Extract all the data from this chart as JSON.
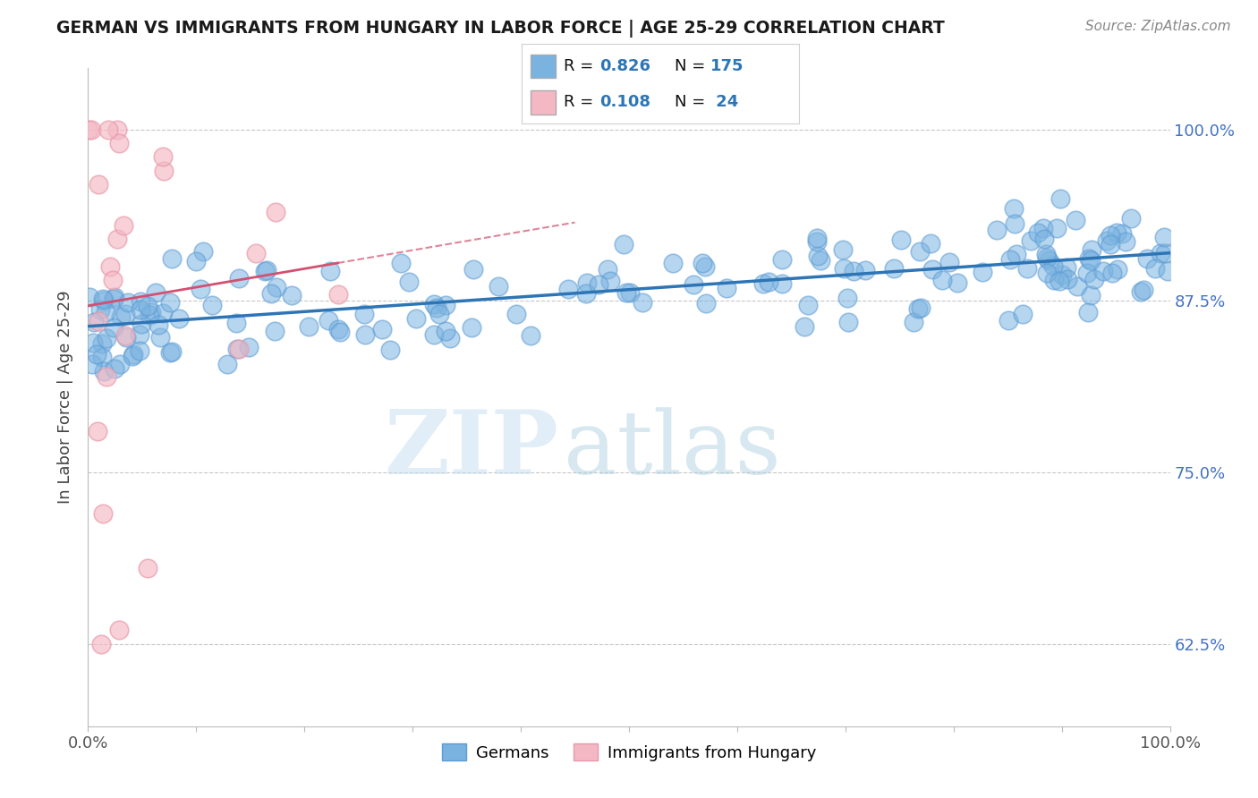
{
  "title": "GERMAN VS IMMIGRANTS FROM HUNGARY IN LABOR FORCE | AGE 25-29 CORRELATION CHART",
  "source_text": "Source: ZipAtlas.com",
  "ylabel": "In Labor Force | Age 25-29",
  "xlim": [
    0.0,
    1.0
  ],
  "x_tick_labels": [
    "0.0%",
    "100.0%"
  ],
  "y_tick_labels": [
    "62.5%",
    "75.0%",
    "87.5%",
    "100.0%"
  ],
  "y_tick_values": [
    0.625,
    0.75,
    0.875,
    1.0
  ],
  "ylim_low": 0.565,
  "ylim_high": 1.045,
  "background_color": "#ffffff",
  "watermark_zip": "ZIP",
  "watermark_atlas": "atlas",
  "blue_color": "#7ab3e0",
  "blue_edge_color": "#5b9bd5",
  "blue_line_color": "#2e75b6",
  "pink_color": "#f4b8c4",
  "pink_edge_color": "#e898a8",
  "pink_line_color": "#d45070",
  "grid_color": "#c8c8c8",
  "title_color": "#1a1a1a",
  "source_color": "#888888",
  "axis_label_color": "#444444",
  "right_tick_color": "#4472c4",
  "legend_text_color": "#111111",
  "legend_value_color": "#2e75b6",
  "seed": 42,
  "blue_N": 175,
  "pink_N": 24,
  "blue_R": 0.826,
  "pink_R": 0.108
}
